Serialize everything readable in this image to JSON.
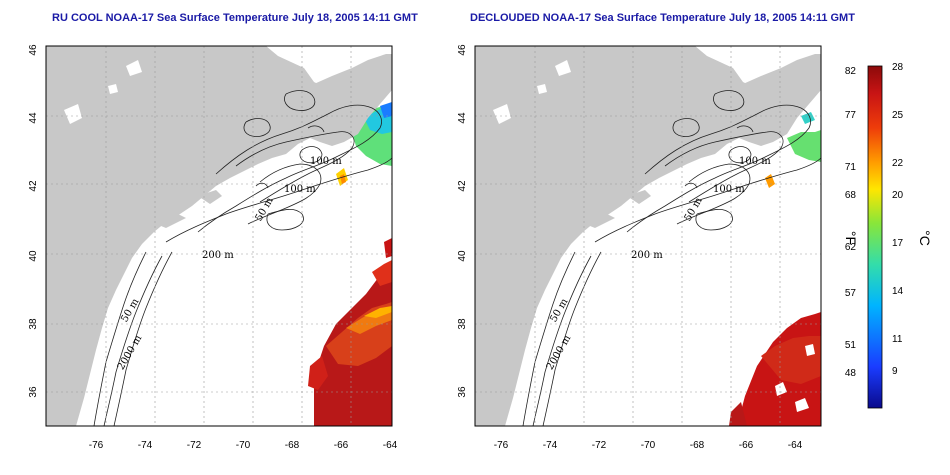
{
  "panels": [
    {
      "title": "RU COOL NOAA-17 Sea Surface Temperature July 18, 2005 14:11 GMT",
      "contour_labels": [
        "100 m",
        "100 m",
        "50 m",
        "200 m",
        "50 m",
        "2000 m"
      ],
      "variant": "raw"
    },
    {
      "title": "DECLOUDED NOAA-17 Sea Surface Temperature July 18, 2005 14:11 GMT",
      "contour_labels": [
        "100 m",
        "100 m",
        "50 m",
        "200 m",
        "50 m",
        "2000 m"
      ],
      "variant": "declouded"
    }
  ],
  "axes": {
    "lon_ticks": [
      "-76",
      "-74",
      "-72",
      "-70",
      "-68",
      "-66",
      "-64"
    ],
    "lat_ticks": [
      "46",
      "44",
      "42",
      "40",
      "38",
      "36"
    ]
  },
  "colorbar": {
    "f_ticks": [
      "82",
      "77",
      "71",
      "68",
      "62",
      "57",
      "51",
      "48"
    ],
    "c_ticks": [
      "28",
      "25",
      "22",
      "20",
      "17",
      "14",
      "11",
      "9"
    ],
    "f_unit": "°F",
    "c_unit": "°C",
    "colors": [
      "#0a0a8c",
      "#1a3cff",
      "#00b4ff",
      "#33ddaa",
      "#88e63a",
      "#ffe600",
      "#ff9b00",
      "#ee3c0a",
      "#c81414",
      "#8c0a0a"
    ]
  },
  "colors": {
    "land": "#c8c8c8",
    "ocean": "#ffffff",
    "grid": "#9a9a9a",
    "title": "#1a1aa6"
  }
}
